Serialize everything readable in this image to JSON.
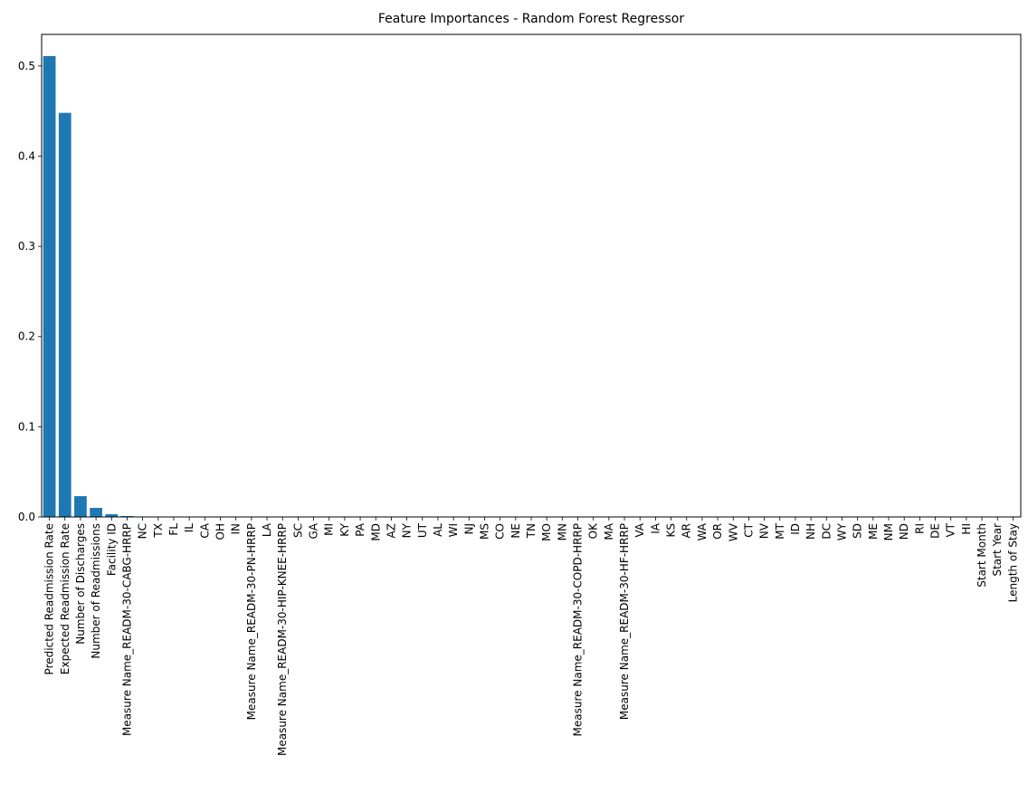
{
  "chart_data": {
    "type": "bar",
    "title": "Feature Importances - Random Forest Regressor",
    "xlabel": "",
    "ylabel": "",
    "ylim": [
      0,
      0.535
    ],
    "yticks": [
      "0.0",
      "0.1",
      "0.2",
      "0.3",
      "0.4",
      "0.5"
    ],
    "grid": false,
    "legend": "none",
    "bar_color": "#1f77b4",
    "categories": [
      "Predicted Readmission Rate",
      "Expected Readmission Rate",
      "Number of Discharges",
      "Number of Readmissions",
      "Facility ID",
      "Measure Name_READM-30-CABG-HRRP",
      "NC",
      "TX",
      "FL",
      "IL",
      "CA",
      "OH",
      "IN",
      "Measure Name_READM-30-PN-HRRP",
      "LA",
      "Measure Name_READM-30-HIP-KNEE-HRRP",
      "SC",
      "GA",
      "MI",
      "KY",
      "PA",
      "MD",
      "AZ",
      "NY",
      "UT",
      "AL",
      "WI",
      "NJ",
      "MS",
      "CO",
      "NE",
      "TN",
      "MO",
      "MN",
      "Measure Name_READM-30-COPD-HRRP",
      "OK",
      "MA",
      "Measure Name_READM-30-HF-HRRP",
      "VA",
      "IA",
      "KS",
      "AR",
      "WA",
      "OR",
      "WV",
      "CT",
      "NV",
      "MT",
      "ID",
      "NH",
      "DC",
      "WY",
      "SD",
      "ME",
      "NM",
      "ND",
      "RI",
      "DE",
      "VT",
      "HI",
      "Start Month",
      "Start Year",
      "Length of Stay"
    ],
    "values": [
      0.511,
      0.448,
      0.023,
      0.01,
      0.003,
      0.001,
      0.0003,
      0.0003,
      0.0002,
      0.0002,
      0.0002,
      0.0002,
      0.0002,
      0.0002,
      0.0001,
      0.0001,
      0.0001,
      0.0001,
      0.0001,
      0.0001,
      0.0001,
      0.0001,
      0.0001,
      0.0001,
      0.0001,
      0.0001,
      0.0001,
      0.0001,
      0.0001,
      0.0001,
      0.0001,
      0.0001,
      0.0001,
      0.0001,
      0.0001,
      0.0001,
      0.0001,
      0.0001,
      0.0001,
      0.0001,
      0.0001,
      0.0001,
      0.0001,
      0.0001,
      0.0001,
      0.0001,
      0,
      0,
      0,
      0,
      0,
      0,
      0,
      0,
      0,
      0,
      0,
      0,
      0,
      0,
      0,
      0,
      0
    ]
  }
}
